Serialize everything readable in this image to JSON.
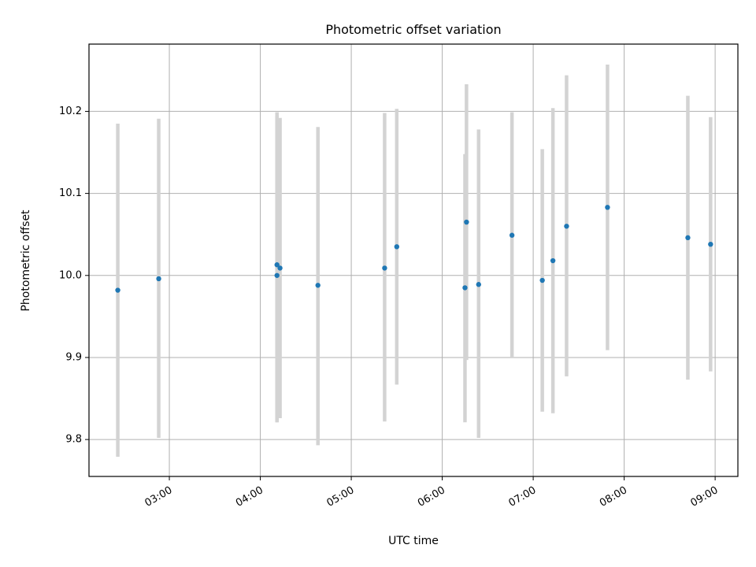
{
  "chart_data": {
    "type": "scatter",
    "title": "Photometric offset variation",
    "xlabel": "UTC time",
    "ylabel": "Photometric offset",
    "x_unit": "UTC time of day",
    "xlim": [
      "02:07",
      "09:15"
    ],
    "ylim": [
      9.755,
      10.282
    ],
    "grid": true,
    "x_ticks": [
      "03:00",
      "04:00",
      "05:00",
      "06:00",
      "07:00",
      "08:00",
      "09:00"
    ],
    "y_ticks": [
      "9.8",
      "9.9",
      "10.0",
      "10.1",
      "10.2"
    ],
    "series": [
      {
        "color": "#1f77b4",
        "errorbar_color": "#d3d3d3",
        "points": [
          {
            "x": "02:26",
            "y": 9.982,
            "y_low": 9.779,
            "y_high": 10.185
          },
          {
            "x": "02:53",
            "y": 9.996,
            "y_low": 9.802,
            "y_high": 10.191
          },
          {
            "x": "04:11",
            "y": 10.0,
            "y_low": 9.821,
            "y_high": 10.199
          },
          {
            "x": "04:11",
            "y": 10.013,
            "y_low": 9.821,
            "y_high": 10.195
          },
          {
            "x": "04:13",
            "y": 10.009,
            "y_low": 9.826,
            "y_high": 10.192
          },
          {
            "x": "04:38",
            "y": 9.988,
            "y_low": 9.793,
            "y_high": 10.181
          },
          {
            "x": "05:22",
            "y": 10.009,
            "y_low": 9.822,
            "y_high": 10.198
          },
          {
            "x": "05:30",
            "y": 10.035,
            "y_low": 9.867,
            "y_high": 10.203
          },
          {
            "x": "06:15",
            "y": 9.985,
            "y_low": 9.821,
            "y_high": 10.148
          },
          {
            "x": "06:16",
            "y": 10.065,
            "y_low": 9.897,
            "y_high": 10.233
          },
          {
            "x": "06:24",
            "y": 9.989,
            "y_low": 9.802,
            "y_high": 10.178
          },
          {
            "x": "06:46",
            "y": 10.049,
            "y_low": 9.9,
            "y_high": 10.199
          },
          {
            "x": "07:06",
            "y": 9.994,
            "y_low": 9.834,
            "y_high": 10.154
          },
          {
            "x": "07:13",
            "y": 10.018,
            "y_low": 9.832,
            "y_high": 10.204
          },
          {
            "x": "07:22",
            "y": 10.06,
            "y_low": 9.877,
            "y_high": 10.244
          },
          {
            "x": "07:49",
            "y": 10.083,
            "y_low": 9.909,
            "y_high": 10.257
          },
          {
            "x": "08:42",
            "y": 10.046,
            "y_low": 9.873,
            "y_high": 10.219
          },
          {
            "x": "08:57",
            "y": 10.038,
            "y_low": 9.883,
            "y_high": 10.193
          }
        ]
      }
    ]
  }
}
